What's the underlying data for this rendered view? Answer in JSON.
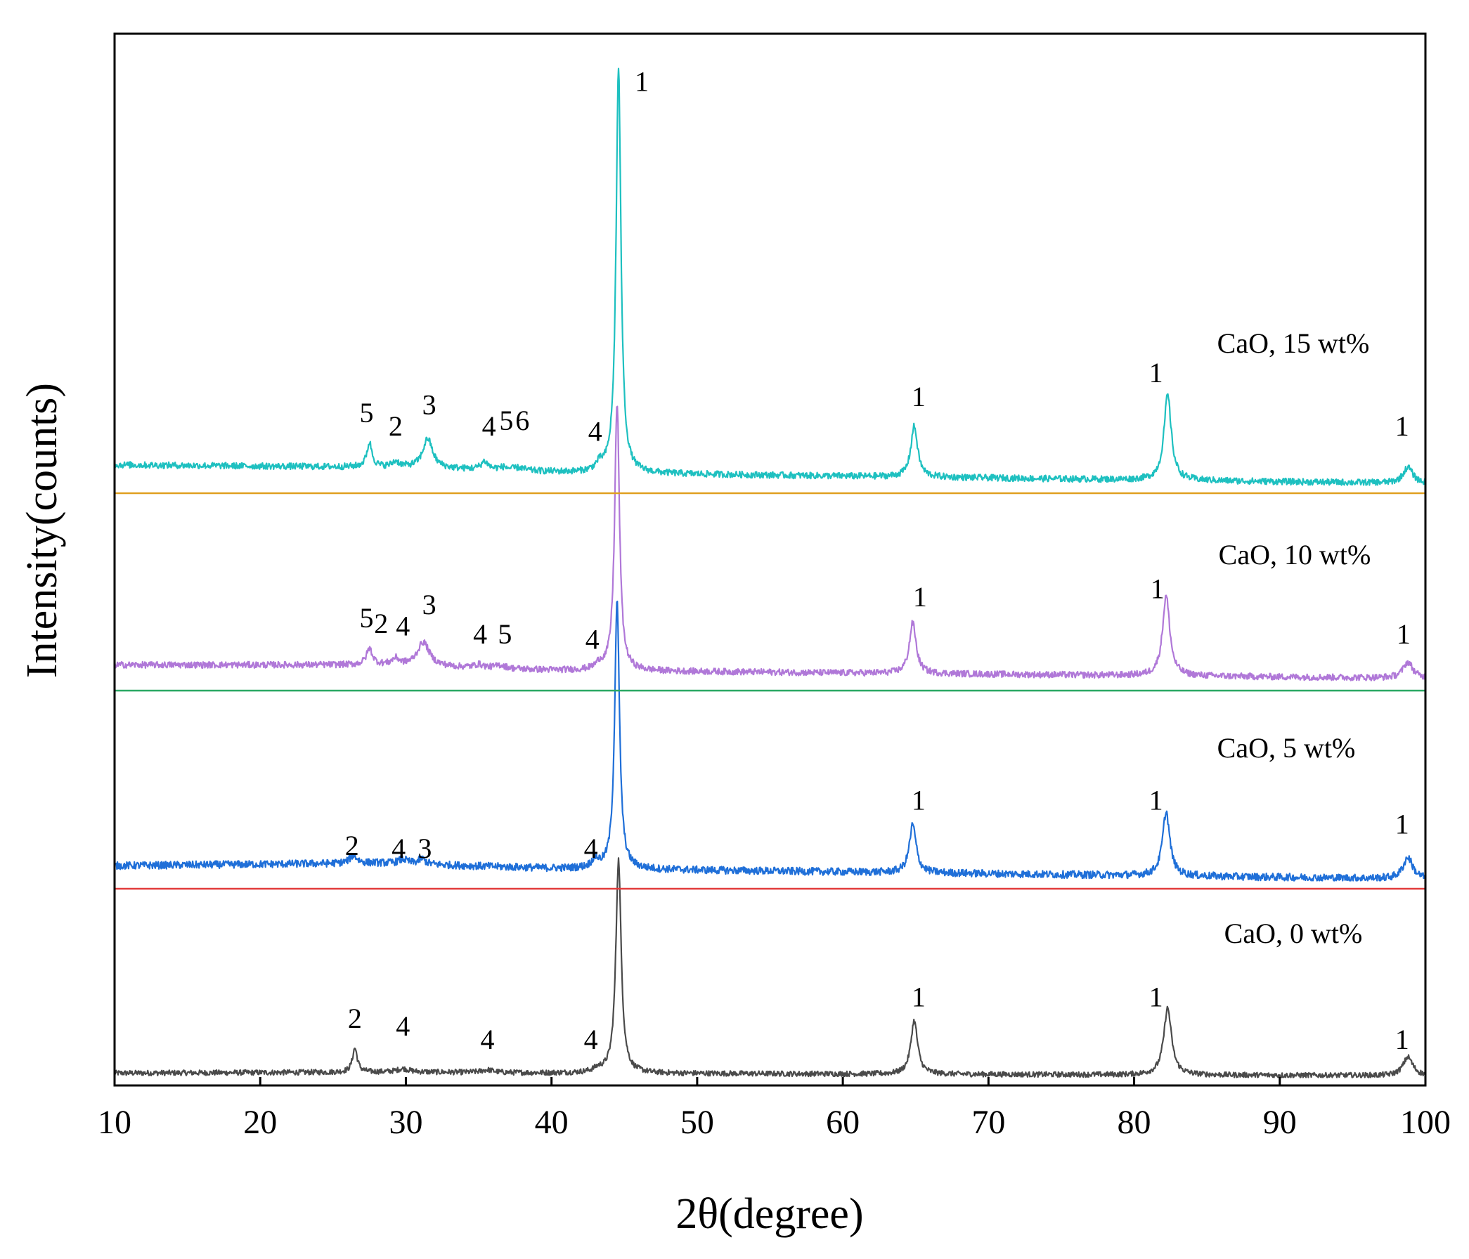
{
  "chart_data": {
    "type": "line",
    "title": "",
    "xlabel": "2θ(degree)",
    "ylabel": "Intensity(counts)",
    "xlim": [
      10,
      100
    ],
    "xticks": [
      10,
      20,
      30,
      40,
      50,
      60,
      70,
      80,
      90,
      100
    ],
    "xtick_labels": [
      "10",
      "20",
      "30",
      "40",
      "50",
      "60",
      "70",
      "80",
      "90",
      "100"
    ],
    "grid": false,
    "legend": "none (inline series labels on right)",
    "series": [
      {
        "name": "CaO, 0 wt%",
        "color": "#4a4a4a",
        "baseline_color": "#4a4a4a",
        "noise": 0.05,
        "background": [
          [
            10,
            0.1
          ],
          [
            30,
            0.12
          ],
          [
            40,
            0.1
          ],
          [
            100,
            0.05
          ]
        ],
        "peaks": [
          {
            "x": 26.5,
            "h": 0.45,
            "w": 0.2
          },
          {
            "x": 29.8,
            "h": 0.06,
            "w": 0.5
          },
          {
            "x": 35.6,
            "h": 0.05,
            "w": 0.5
          },
          {
            "x": 43.2,
            "h": 0.06,
            "w": 0.4
          },
          {
            "x": 44.6,
            "h": 4.0,
            "w": 0.22
          },
          {
            "x": 64.9,
            "h": 1.0,
            "w": 0.28
          },
          {
            "x": 82.3,
            "h": 1.25,
            "w": 0.32
          },
          {
            "x": 98.8,
            "h": 0.35,
            "w": 0.4
          }
        ],
        "annotations": [
          {
            "text": "2",
            "x": 26.5,
            "offset": 0.95
          },
          {
            "text": "4",
            "x": 29.8,
            "offset": 0.8
          },
          {
            "text": "4",
            "x": 35.6,
            "offset": 0.55
          },
          {
            "text": "4",
            "x": 42.7,
            "offset": 0.55
          },
          {
            "text": "1",
            "x": 65.2,
            "offset": 1.35
          },
          {
            "text": "1",
            "x": 81.5,
            "offset": 1.35
          },
          {
            "text": "1",
            "x": 98.4,
            "offset": 0.55
          }
        ]
      },
      {
        "name": "CaO, 5 wt%",
        "color": "#1f6fd8",
        "baseline_color": "#e23b3b",
        "noise": 0.07,
        "background": [
          [
            10,
            0.3
          ],
          [
            28,
            0.35
          ],
          [
            40,
            0.25
          ],
          [
            100,
            0.05
          ]
        ],
        "peaks": [
          {
            "x": 26.4,
            "h": 0.15,
            "w": 0.3
          },
          {
            "x": 29.8,
            "h": 0.08,
            "w": 0.4
          },
          {
            "x": 31.1,
            "h": 0.1,
            "w": 0.3
          },
          {
            "x": 43.0,
            "h": 0.15,
            "w": 0.3
          },
          {
            "x": 44.5,
            "h": 5.0,
            "w": 0.2
          },
          {
            "x": 64.8,
            "h": 0.9,
            "w": 0.28
          },
          {
            "x": 82.2,
            "h": 1.2,
            "w": 0.3
          },
          {
            "x": 98.8,
            "h": 0.4,
            "w": 0.4
          }
        ],
        "annotations": [
          {
            "text": "2",
            "x": 26.3,
            "offset": 0.5
          },
          {
            "text": "4",
            "x": 29.5,
            "offset": 0.45
          },
          {
            "text": "3",
            "x": 31.3,
            "offset": 0.45
          },
          {
            "text": "4",
            "x": 42.7,
            "offset": 0.45
          },
          {
            "text": "1",
            "x": 65.2,
            "offset": 1.35
          },
          {
            "text": "1",
            "x": 81.5,
            "offset": 1.35
          },
          {
            "text": "1",
            "x": 98.4,
            "offset": 0.9
          }
        ]
      },
      {
        "name": "CaO, 10 wt%",
        "color": "#b078d8",
        "baseline_color": "#2aa864",
        "noise": 0.06,
        "background": [
          [
            10,
            0.35
          ],
          [
            28,
            0.35
          ],
          [
            40,
            0.25
          ],
          [
            100,
            0.1
          ]
        ],
        "peaks": [
          {
            "x": 27.5,
            "h": 0.3,
            "w": 0.25
          },
          {
            "x": 29.3,
            "h": 0.12,
            "w": 0.3
          },
          {
            "x": 31.2,
            "h": 0.45,
            "w": 0.5
          },
          {
            "x": 35.0,
            "h": 0.06,
            "w": 0.4
          },
          {
            "x": 36.5,
            "h": 0.06,
            "w": 0.4
          },
          {
            "x": 43.3,
            "h": 0.1,
            "w": 0.3
          },
          {
            "x": 44.5,
            "h": 5.0,
            "w": 0.2
          },
          {
            "x": 64.8,
            "h": 0.95,
            "w": 0.28
          },
          {
            "x": 82.2,
            "h": 1.5,
            "w": 0.3
          },
          {
            "x": 98.8,
            "h": 0.3,
            "w": 0.4
          }
        ],
        "annotations": [
          {
            "text": "5",
            "x": 27.3,
            "offset": 1.05
          },
          {
            "text": "2",
            "x": 28.3,
            "offset": 0.95
          },
          {
            "text": "4",
            "x": 29.8,
            "offset": 0.9
          },
          {
            "text": "3",
            "x": 31.6,
            "offset": 1.3
          },
          {
            "text": "4",
            "x": 35.1,
            "offset": 0.75
          },
          {
            "text": "5",
            "x": 36.8,
            "offset": 0.75
          },
          {
            "text": "4",
            "x": 42.8,
            "offset": 0.65
          },
          {
            "text": "1",
            "x": 65.3,
            "offset": 1.45
          },
          {
            "text": "1",
            "x": 81.6,
            "offset": 1.6
          },
          {
            "text": "1",
            "x": 98.5,
            "offset": 0.75
          }
        ]
      },
      {
        "name": "CaO, 15 wt%",
        "color": "#1ec0c0",
        "baseline_color": "#e0a020",
        "noise": 0.06,
        "background": [
          [
            10,
            0.4
          ],
          [
            30,
            0.35
          ],
          [
            42,
            0.25
          ],
          [
            100,
            0.05
          ]
        ],
        "peaks": [
          {
            "x": 27.5,
            "h": 0.45,
            "w": 0.22
          },
          {
            "x": 29.3,
            "h": 0.1,
            "w": 0.3
          },
          {
            "x": 31.5,
            "h": 0.55,
            "w": 0.4
          },
          {
            "x": 35.4,
            "h": 0.15,
            "w": 0.3
          },
          {
            "x": 36.7,
            "h": 0.05,
            "w": 0.4
          },
          {
            "x": 37.8,
            "h": 0.05,
            "w": 0.4
          },
          {
            "x": 43.3,
            "h": 0.12,
            "w": 0.3
          },
          {
            "x": 44.6,
            "h": 7.6,
            "w": 0.2
          },
          {
            "x": 64.9,
            "h": 0.95,
            "w": 0.28
          },
          {
            "x": 82.3,
            "h": 1.6,
            "w": 0.3
          },
          {
            "x": 98.8,
            "h": 0.3,
            "w": 0.4
          }
        ],
        "annotations": [
          {
            "text": "5",
            "x": 27.3,
            "offset": 1.2
          },
          {
            "text": "2",
            "x": 29.3,
            "offset": 0.95
          },
          {
            "text": "3",
            "x": 31.6,
            "offset": 1.35
          },
          {
            "text": "4",
            "x": 35.7,
            "offset": 0.95
          },
          {
            "text": "5",
            "x": 36.9,
            "offset": 1.05
          },
          {
            "text": "6",
            "x": 38.0,
            "offset": 1.05
          },
          {
            "text": "4",
            "x": 43.0,
            "offset": 0.85
          },
          {
            "text": "1",
            "x": 46.2,
            "offset": 7.4
          },
          {
            "text": "1",
            "x": 65.2,
            "offset": 1.5
          },
          {
            "text": "1",
            "x": 81.5,
            "offset": 1.95
          },
          {
            "text": "1",
            "x": 98.4,
            "offset": 0.95
          }
        ]
      }
    ]
  }
}
